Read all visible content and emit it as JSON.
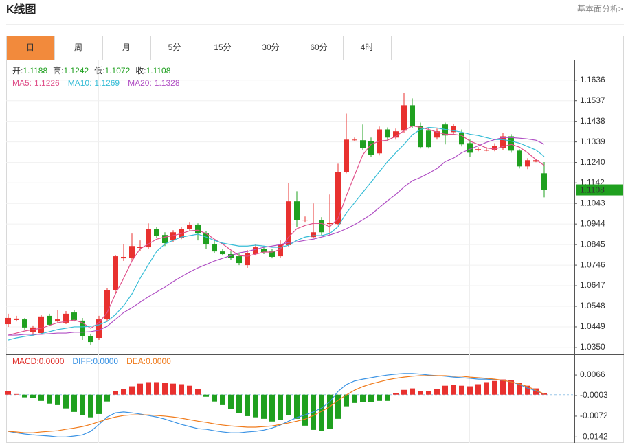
{
  "header": {
    "title": "K线图",
    "link": "基本面分析>"
  },
  "tabs": [
    "日",
    "周",
    "月",
    "5分",
    "15分",
    "30分",
    "60分",
    "4时"
  ],
  "active_tab": 0,
  "chart_data": [
    {
      "type": "candlestick",
      "ylim": [
        1.032,
        1.1731
      ],
      "yticks": [
        1.1636,
        1.1537,
        1.1438,
        1.1339,
        {
          "value": 1.124,
          "label": "1.1240"
        },
        1.1142,
        1.1043,
        1.0944,
        1.0845,
        1.0746,
        1.0647,
        1.0548,
        1.0449,
        {
          "value": 1.035,
          "label": "1.0350"
        }
      ],
      "grid": true,
      "up_color": "#e8312f",
      "down_color": "#1fa01f",
      "ohlc_labels": {
        "open": "开:",
        "high": "高:",
        "low": "低:",
        "close": "收:"
      },
      "open": [
        1.0462,
        1.0482,
        1.0485,
        1.0423,
        1.0419,
        1.0502,
        1.0475,
        1.0469,
        1.0518,
        1.0479,
        1.0403,
        1.0396,
        1.0485,
        1.0624,
        1.0779,
        1.0782,
        1.0829,
        1.0832,
        1.0921,
        1.0891,
        1.0865,
        1.0878,
        1.0921,
        1.0941,
        1.0898,
        1.0848,
        1.0812,
        1.0799,
        1.0789,
        1.0746,
        1.0799,
        1.0825,
        1.0812,
        1.0789,
        1.0842,
        1.1053,
        1.0964,
        1.0881,
        1.0961,
        1.0944,
        1.0944,
        1.1195,
        1.135,
        1.1347,
        1.1343,
        1.1284,
        1.1399,
        1.136,
        1.1393,
        1.1515,
        1.1416,
        1.1393,
        1.136,
        1.1423,
        1.1386,
        1.1383,
        1.1333,
        1.1304,
        1.13,
        1.13,
        1.131,
        1.1366,
        1.1297,
        1.1221,
        1.1244,
        1.1188
      ],
      "high": [
        1.0512,
        1.0502,
        1.0492,
        1.0456,
        1.0505,
        1.0512,
        1.0528,
        1.0525,
        1.0528,
        1.0492,
        1.0413,
        1.0502,
        1.0634,
        1.0796,
        1.0848,
        1.0898,
        1.0865,
        1.0947,
        1.0931,
        1.0904,
        1.0914,
        1.0931,
        1.0954,
        1.0947,
        1.0911,
        1.0871,
        1.0825,
        1.0812,
        1.0805,
        1.0819,
        1.0848,
        1.0838,
        1.0825,
        1.0865,
        1.1142,
        1.1102,
        1.098,
        1.1043,
        1.0977,
        1.1086,
        1.1234,
        1.1475,
        1.136,
        1.1423,
        1.136,
        1.1413,
        1.1409,
        1.1403,
        1.1574,
        1.1548,
        1.1432,
        1.1409,
        1.1403,
        1.1432,
        1.1426,
        1.1399,
        1.135,
        1.1314,
        1.1314,
        1.1333,
        1.1383,
        1.1376,
        1.1304,
        1.1261,
        1.1254,
        1.1242
      ],
      "low": [
        1.0449,
        1.0475,
        1.0436,
        1.0403,
        1.0413,
        1.0452,
        1.0469,
        1.0462,
        1.0475,
        1.0386,
        1.0363,
        1.0386,
        1.0475,
        1.0607,
        1.0766,
        1.0766,
        1.0815,
        1.0825,
        1.0878,
        1.0838,
        1.0858,
        1.0871,
        1.0911,
        1.0865,
        1.0825,
        1.0805,
        1.0792,
        1.0772,
        1.0746,
        1.0733,
        1.0792,
        1.0799,
        1.0779,
        1.0782,
        1.0832,
        1.0931,
        1.0954,
        1.0875,
        1.0891,
        1.0891,
        1.0937,
        1.1188,
        1.1343,
        1.13,
        1.1267,
        1.1274,
        1.1343,
        1.135,
        1.1383,
        1.1406,
        1.1307,
        1.1307,
        1.135,
        1.1327,
        1.1376,
        1.1317,
        1.1267,
        1.1294,
        1.1294,
        1.1294,
        1.13,
        1.1287,
        1.1211,
        1.1208,
        1.1241,
        1.1072
      ],
      "close": [
        1.0492,
        1.0489,
        1.0446,
        1.0446,
        1.0499,
        1.0459,
        1.0485,
        1.0512,
        1.0482,
        1.0403,
        1.0376,
        1.0485,
        1.0624,
        1.0789,
        1.0786,
        1.0838,
        1.0835,
        1.0921,
        1.0888,
        1.0852,
        1.0904,
        1.0921,
        1.0941,
        1.0898,
        1.0848,
        1.0812,
        1.0799,
        1.0782,
        1.0756,
        1.0805,
        1.0832,
        1.0809,
        1.0786,
        1.0848,
        1.1053,
        1.0964,
        1.0964,
        1.0904,
        1.0904,
        1.0951,
        1.1195,
        1.135,
        1.135,
        1.131,
        1.1277,
        1.1399,
        1.136,
        1.139,
        1.1515,
        1.1416,
        1.1314,
        1.1314,
        1.139,
        1.137,
        1.1416,
        1.1327,
        1.1287,
        1.1304,
        1.13,
        1.132,
        1.1366,
        1.1297,
        1.1221,
        1.1251,
        1.1251,
        1.1108
      ],
      "series": [
        {
          "name": "MA5:",
          "color": "#e0508a",
          "values": [
            1.0409,
            1.0419,
            1.0429,
            1.0436,
            1.0442,
            1.0456,
            1.0469,
            1.0475,
            1.0482,
            1.0469,
            1.0442,
            1.0469,
            1.0518,
            1.0607,
            1.0683,
            1.0766,
            1.0825,
            1.0848,
            1.0871,
            1.0881,
            1.0888,
            1.0898,
            1.0911,
            1.0914,
            1.0898,
            1.0871,
            1.0848,
            1.0819,
            1.0792,
            1.0789,
            1.0799,
            1.0809,
            1.0809,
            1.0822,
            1.0881,
            1.0921,
            1.0937,
            1.0947,
            1.0947,
            1.0931,
            1.097,
            1.1079,
            1.1178,
            1.1277,
            1.1327,
            1.1343,
            1.1347,
            1.1366,
            1.1393,
            1.1416,
            1.1409,
            1.1399,
            1.1386,
            1.1376,
            1.1376,
            1.137,
            1.1343,
            1.1327,
            1.131,
            1.1304,
            1.1317,
            1.1327,
            1.1314,
            1.1287,
            1.1254,
            1.1226
          ]
        },
        {
          "name": "MA10:",
          "color": "#35bcd6",
          "values": [
            1.0386,
            1.0396,
            1.0403,
            1.0409,
            1.0416,
            1.0426,
            1.0436,
            1.0442,
            1.0449,
            1.0449,
            1.0452,
            1.0459,
            1.0475,
            1.0508,
            1.0551,
            1.0607,
            1.0683,
            1.0749,
            1.0812,
            1.0848,
            1.0865,
            1.0881,
            1.0888,
            1.0895,
            1.0881,
            1.0865,
            1.0852,
            1.0845,
            1.0838,
            1.0838,
            1.0842,
            1.0838,
            1.0832,
            1.0832,
            1.0842,
            1.0865,
            1.0881,
            1.0888,
            1.0888,
            1.0898,
            1.0931,
            1.0997,
            1.1046,
            1.1096,
            1.1145,
            1.1195,
            1.1244,
            1.1287,
            1.1327,
            1.1373,
            1.1399,
            1.1409,
            1.1406,
            1.1399,
            1.1393,
            1.1386,
            1.1376,
            1.137,
            1.136,
            1.135,
            1.135,
            1.1343,
            1.1333,
            1.1317,
            1.13,
            1.1269
          ]
        },
        {
          "name": "MA20:",
          "color": "#b04fc4",
          "values": [
            1.0409,
            1.0409,
            1.0413,
            1.0413,
            1.0413,
            1.0416,
            1.0419,
            1.0419,
            1.0423,
            1.0423,
            1.0426,
            1.0433,
            1.0452,
            1.0485,
            1.0518,
            1.0541,
            1.0568,
            1.0594,
            1.0617,
            1.064,
            1.0667,
            1.069,
            1.0713,
            1.0733,
            1.0749,
            1.0766,
            1.0779,
            1.0792,
            1.0805,
            1.0812,
            1.0822,
            1.0832,
            1.0838,
            1.0845,
            1.0855,
            1.0858,
            1.0865,
            1.0871,
            1.0881,
            1.0891,
            1.0904,
            1.0921,
            1.0941,
            1.0964,
            1.099,
            1.1023,
            1.1056,
            1.1086,
            1.1122,
            1.1152,
            1.1168,
            1.1188,
            1.1211,
            1.1244,
            1.1261,
            1.1287,
            1.1304,
            1.132,
            1.1337,
            1.135,
            1.136,
            1.136,
            1.1357,
            1.1353,
            1.1347,
            1.1328
          ]
        }
      ]
    },
    {
      "type": "macd",
      "ylim": [
        -0.0162,
        0.0133
      ],
      "yticks": [
        0.0066,
        -0.0003,
        -0.0072,
        -0.0142
      ],
      "up_color": "#e8312f",
      "down_color": "#1fa01f",
      "histogram": {
        "name": "MACD:",
        "color": "#e0302c",
        "legend_value": {
          "value": 0,
          "label": "0.0000"
        },
        "values": [
          0.0012,
          0.0002,
          -0.0009,
          -0.0012,
          -0.0021,
          -0.003,
          -0.0035,
          -0.0046,
          -0.0058,
          -0.0069,
          -0.0076,
          -0.0065,
          -0.0023,
          0.0012,
          0.0018,
          0.0028,
          0.0037,
          0.0042,
          0.0042,
          0.0039,
          0.0037,
          0.0035,
          0.003,
          0.0018,
          -0.0007,
          -0.0023,
          -0.0035,
          -0.0048,
          -0.0062,
          -0.0072,
          -0.0076,
          -0.0081,
          -0.009,
          -0.0085,
          -0.0069,
          -0.0081,
          -0.0104,
          -0.0118,
          -0.0122,
          -0.0115,
          -0.0081,
          -0.0039,
          -0.0028,
          -0.0025,
          -0.0025,
          -0.0021,
          -0.0021,
          0.0005,
          0.0016,
          0.0021,
          0.0012,
          0.0012,
          0.0018,
          0.003,
          0.0032,
          0.003,
          0.0028,
          0.0035,
          0.0042,
          0.0046,
          0.0051,
          0.0048,
          0.0039,
          0.003,
          0.0021,
          0.0005
        ]
      },
      "series": [
        {
          "name": "DIFF:",
          "color": "#3b93e4",
          "legend_value": {
            "value": 0,
            "label": "0.0000"
          },
          "values": [
            -0.0123,
            -0.0128,
            -0.0132,
            -0.0135,
            -0.0137,
            -0.0139,
            -0.0142,
            -0.0142,
            -0.0139,
            -0.0135,
            -0.0123,
            -0.01,
            -0.0075,
            -0.0061,
            -0.0058,
            -0.0061,
            -0.0065,
            -0.007,
            -0.0075,
            -0.0082,
            -0.0091,
            -0.01,
            -0.0107,
            -0.0114,
            -0.0116,
            -0.0121,
            -0.0125,
            -0.0128,
            -0.0128,
            -0.0125,
            -0.0123,
            -0.0119,
            -0.0112,
            -0.0102,
            -0.0089,
            -0.0077,
            -0.0068,
            -0.0058,
            -0.0045,
            -0.0024,
            0.0011,
            0.0034,
            0.0046,
            0.0052,
            0.0057,
            0.0062,
            0.0066,
            0.0069,
            0.0071,
            0.0071,
            0.0069,
            0.0066,
            0.0064,
            0.0062,
            0.0059,
            0.0057,
            0.0055,
            0.0052,
            0.0052,
            0.005,
            0.0048,
            0.0043,
            0.0034,
            0.0022,
            0.0013,
            0.0002
          ]
        },
        {
          "name": "DEA:",
          "color": "#f07a1a",
          "legend_value": {
            "value": 0,
            "label": "0.0000"
          },
          "values": [
            -0.0123,
            -0.0125,
            -0.0128,
            -0.0128,
            -0.0125,
            -0.0123,
            -0.0121,
            -0.0116,
            -0.0112,
            -0.0107,
            -0.01,
            -0.0091,
            -0.0082,
            -0.0075,
            -0.007,
            -0.0068,
            -0.0068,
            -0.0068,
            -0.007,
            -0.0072,
            -0.0075,
            -0.0079,
            -0.0084,
            -0.0089,
            -0.0093,
            -0.0098,
            -0.0102,
            -0.0105,
            -0.0107,
            -0.0109,
            -0.0109,
            -0.0107,
            -0.0105,
            -0.01,
            -0.0095,
            -0.0089,
            -0.0082,
            -0.007,
            -0.0056,
            -0.004,
            -0.0019,
            -0.0001,
            0.0015,
            0.0027,
            0.0036,
            0.0043,
            0.005,
            0.0055,
            0.0059,
            0.0062,
            0.0064,
            0.0064,
            0.0064,
            0.0064,
            0.0062,
            0.0062,
            0.0059,
            0.0057,
            0.0055,
            0.0052,
            0.0048,
            0.0043,
            0.0036,
            0.0027,
            0.0015,
            0.0002
          ]
        }
      ]
    }
  ]
}
